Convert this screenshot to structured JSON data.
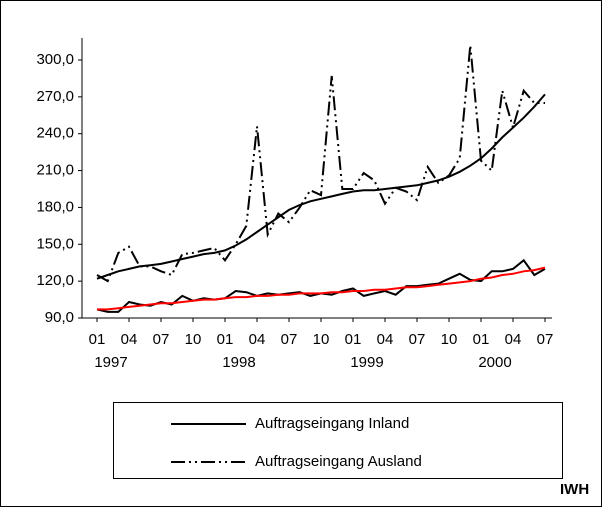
{
  "chart_data": {
    "type": "line",
    "categories": [
      "01",
      null,
      null,
      "04",
      null,
      null,
      "07",
      null,
      null,
      "10",
      null,
      null,
      "01",
      null,
      null,
      "04",
      null,
      null,
      "07",
      null,
      null,
      "10",
      null,
      null,
      "01",
      null,
      null,
      "04",
      null,
      null,
      "07",
      null,
      null,
      "10",
      null,
      null,
      "01",
      null,
      null,
      "04",
      null,
      null,
      "07"
    ],
    "years": [
      "1997",
      "1998",
      "1999",
      "2000"
    ],
    "ylim": [
      90,
      300
    ],
    "yticks": [
      {
        "value": 90,
        "label": "90,0"
      },
      {
        "value": 120,
        "label": "120,0"
      },
      {
        "value": 150,
        "label": "150,0"
      },
      {
        "value": 180,
        "label": "180,0"
      },
      {
        "value": 210,
        "label": "210,0"
      },
      {
        "value": 240,
        "label": "240,0"
      },
      {
        "value": 270,
        "label": "270,0"
      },
      {
        "value": 300,
        "label": "300,0"
      }
    ],
    "series": [
      {
        "name": "Auftragseingang Inland",
        "color": "#000000",
        "style": "solid",
        "values": [
          122,
          125,
          128,
          130,
          132,
          133,
          134,
          136,
          138,
          140,
          142,
          143,
          145,
          149,
          154,
          160,
          166,
          172,
          178,
          182,
          185,
          187,
          189,
          191,
          193,
          194,
          194,
          195,
          196,
          197,
          198,
          200,
          202,
          205,
          209,
          214,
          220,
          228,
          237,
          245,
          253,
          262,
          272
        ]
      },
      {
        "name": "Auftragseingang Ausland",
        "color": "#000000",
        "style": "dashdotdot",
        "values": [
          125,
          120,
          143,
          148,
          132,
          132,
          128,
          125,
          142,
          143,
          145,
          147,
          137,
          150,
          165,
          246,
          158,
          175,
          168,
          180,
          194,
          190,
          287,
          195,
          195,
          208,
          202,
          183,
          196,
          193,
          186,
          213,
          200,
          206,
          220,
          312,
          218,
          210,
          275,
          245,
          275,
          265,
          265
        ]
      },
      {
        "color": "#000000",
        "style": "solid",
        "values": [
          97,
          95,
          95,
          103,
          101,
          100,
          103,
          101,
          108,
          104,
          106,
          105,
          106,
          112,
          111,
          108,
          110,
          109,
          110,
          111,
          108,
          110,
          109,
          112,
          114,
          108,
          110,
          112,
          109,
          116,
          116,
          117,
          118,
          122,
          126,
          121,
          120,
          128,
          128,
          130,
          137,
          125,
          130
        ]
      },
      {
        "color": "#ff0000",
        "style": "solid",
        "values": [
          97,
          97,
          98,
          99,
          100,
          101,
          102,
          102,
          103,
          104,
          105,
          105,
          106,
          107,
          107,
          108,
          108,
          109,
          109,
          110,
          110,
          110,
          111,
          111,
          112,
          112,
          113,
          113,
          114,
          115,
          115,
          116,
          117,
          118,
          119,
          120,
          122,
          123,
          125,
          126,
          128,
          129,
          131
        ]
      }
    ],
    "source": "IWH"
  }
}
